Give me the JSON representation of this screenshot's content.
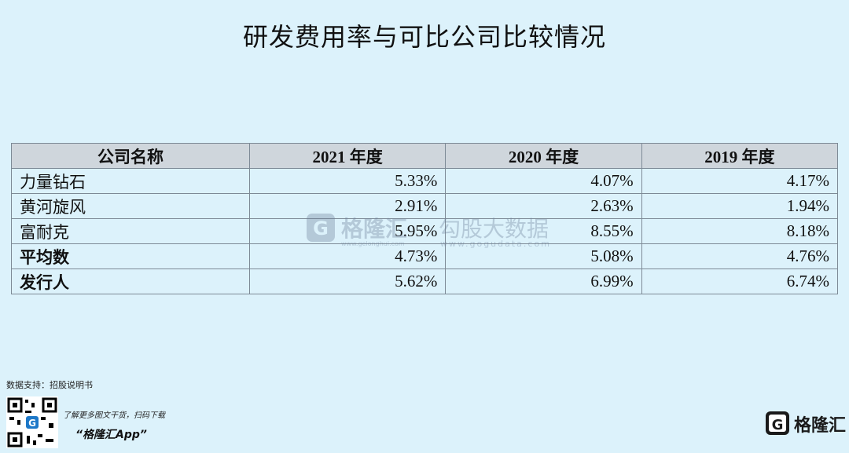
{
  "header": {
    "title": "研发费用率与可比公司比较情况"
  },
  "table": {
    "columns": [
      "公司名称",
      "2021 年度",
      "2020 年度",
      "2019 年度"
    ],
    "rows": [
      [
        "力量钻石",
        "5.33%",
        "4.07%",
        "4.17%"
      ],
      [
        "黄河旋风",
        "2.91%",
        "2.63%",
        "1.94%"
      ],
      [
        "富耐克",
        "5.95%",
        "8.55%",
        "8.18%"
      ],
      [
        "平均数",
        "4.73%",
        "5.08%",
        "4.76%"
      ],
      [
        "发行人",
        "5.62%",
        "6.99%",
        "6.74%"
      ]
    ]
  },
  "watermark": {
    "brand": "格隆汇",
    "brand_url": "www.gelonghui.com",
    "partner": "勾股大数据",
    "partner_url": "www.gogudata.com"
  },
  "footer": {
    "source": "数据支持：招股说明书",
    "promo": "了解更多图文干货，扫码下载",
    "app": "“格隆汇App”",
    "logo": "格隆汇"
  }
}
